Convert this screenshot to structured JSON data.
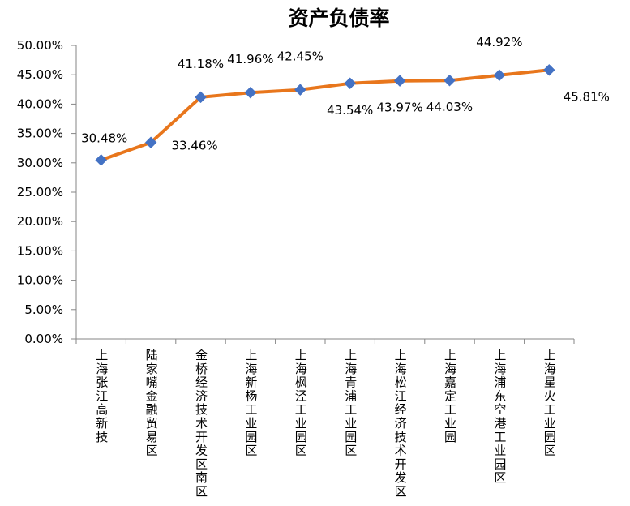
{
  "chart_data": {
    "type": "line",
    "title": "资产负债率",
    "xlabel": "",
    "ylabel": "",
    "ylim": [
      0,
      50
    ],
    "ytick_step": 5,
    "ytick_labels": [
      "0.00%",
      "5.00%",
      "10.00%",
      "15.00%",
      "20.00%",
      "25.00%",
      "30.00%",
      "35.00%",
      "40.00%",
      "45.00%",
      "50.00%"
    ],
    "categories": [
      "上海张江高新技",
      "陆家嘴金融贸易区",
      "金桥经济技术开发区南区",
      "上海新杨工业园区",
      "上海枫泾工业园区",
      "上海青浦工业园区",
      "上海松江经济技术开发区",
      "上海嘉定工业园",
      "上海浦东空港工业园区",
      "上海星火工业园区"
    ],
    "series": [
      {
        "name": "资产负债率",
        "values": [
          30.48,
          33.46,
          41.18,
          41.96,
          42.45,
          43.54,
          43.97,
          44.03,
          44.92,
          45.81
        ],
        "labels": [
          "30.48%",
          "33.46%",
          "41.18%",
          "41.96%",
          "42.45%",
          "43.54%",
          "43.97%",
          "44.03%",
          "44.92%",
          "45.81%"
        ],
        "line_color": "#E8761C",
        "marker_color": "#4472C4"
      }
    ],
    "grid": false,
    "legend": "none"
  }
}
